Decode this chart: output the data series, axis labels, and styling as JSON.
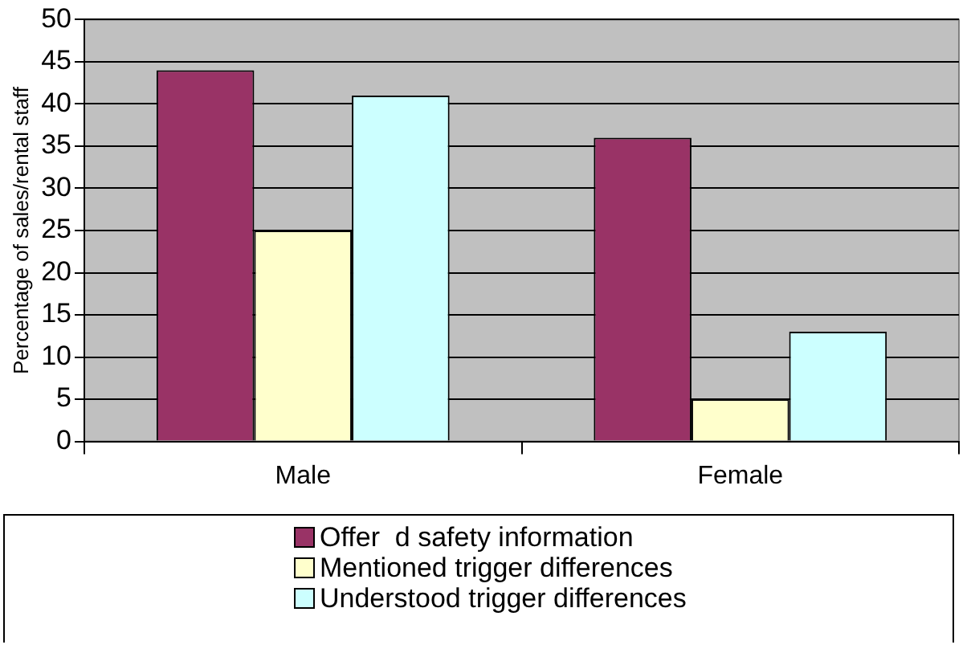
{
  "chart_data": {
    "type": "bar",
    "ylabel": "Percentage of sales/rental staff",
    "categories": [
      "Male",
      "Female"
    ],
    "series": [
      {
        "name": "Offer  d safety information",
        "color": "#993366",
        "values": [
          44,
          36
        ]
      },
      {
        "name": "Mentioned trigger differences",
        "color": "#ffffcc",
        "values": [
          25,
          5
        ]
      },
      {
        "name": "Understood trigger differences",
        "color": "#ccffff",
        "values": [
          41,
          13
        ]
      }
    ],
    "ylim": [
      0,
      50
    ],
    "yticks": [
      0,
      5,
      10,
      15,
      20,
      25,
      30,
      35,
      40,
      45,
      50
    ],
    "grid": "y",
    "legend": "bottom"
  }
}
